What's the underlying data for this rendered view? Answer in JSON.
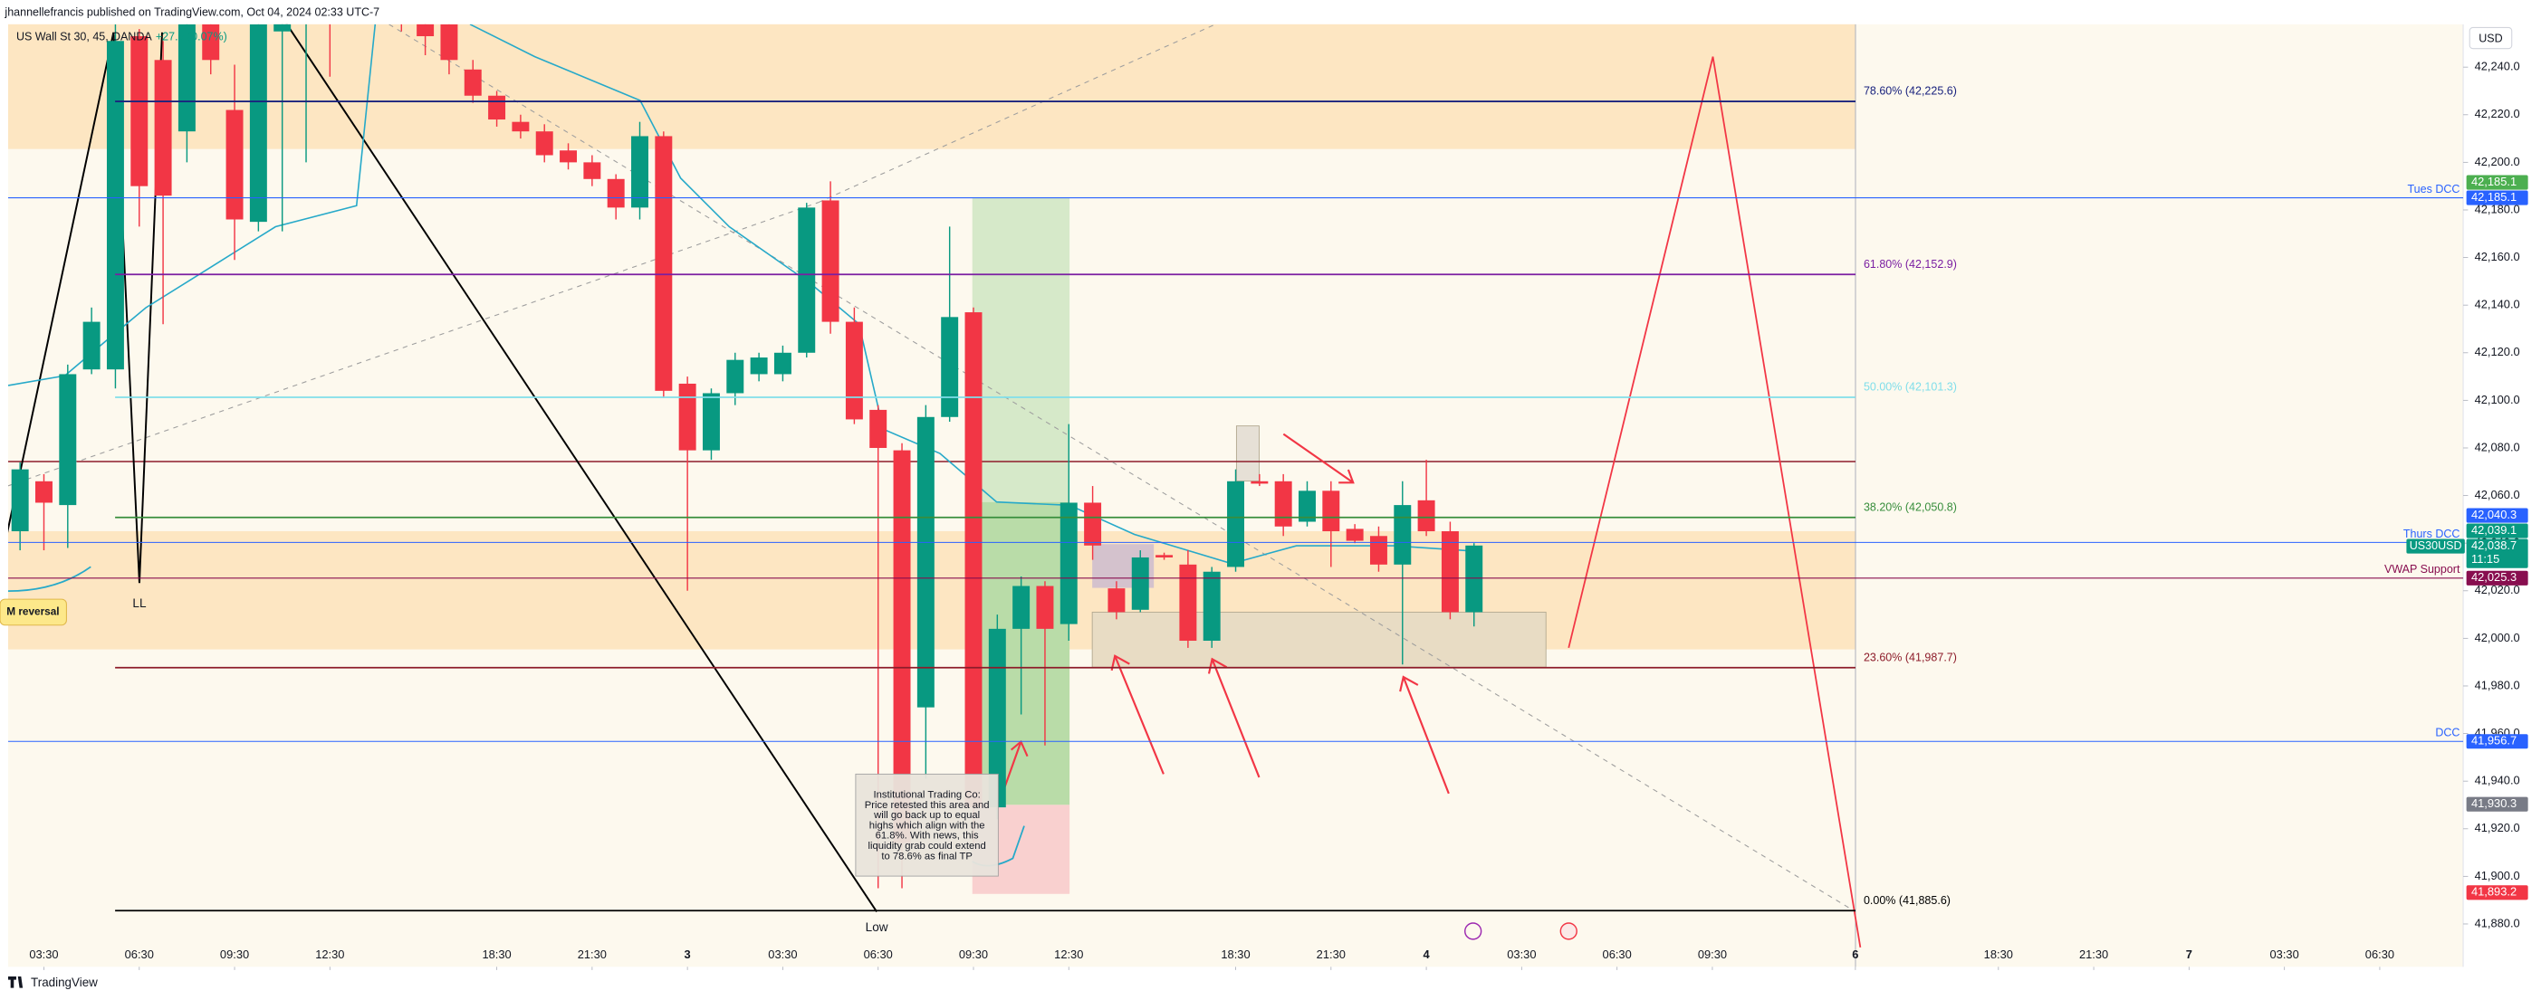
{
  "header": {
    "publisher": "jhannellefrancis published on TradingView.com, Oct 04, 2024 02:33 UTC-7",
    "symbol": "US Wall St 30, 45, OANDA",
    "change": "+27.5 (0.07%)",
    "currency": "USD"
  },
  "footer": "TradingView",
  "annotations": {
    "m_reversal": "M reversal",
    "ll": "LL",
    "low": "Low",
    "note": [
      "Institutional Trading Co:",
      "Price retested this area and",
      "will go back up to equal",
      "highs which align with the",
      "61.8%. With news, this",
      "liquidity grab could extend",
      "to 78.6% as final TP"
    ]
  },
  "chart_data": {
    "type": "candlestick",
    "up_color": "#089981",
    "down_color": "#f23645",
    "x": [
      -1,
      0,
      1,
      2,
      3,
      4,
      5,
      6,
      7,
      8,
      9,
      10,
      11,
      12,
      13,
      14,
      15,
      16,
      17,
      18,
      19,
      20,
      21,
      22,
      23,
      24,
      25,
      26,
      27,
      28,
      29,
      30,
      31,
      32,
      33,
      34,
      35,
      36,
      37,
      38,
      39,
      40,
      41,
      42,
      43,
      44,
      45,
      46,
      47,
      48,
      49,
      50,
      51,
      52,
      53,
      54,
      55,
      56,
      57,
      58,
      59,
      60
    ],
    "open": [
      42045,
      42066,
      42056,
      42113,
      42113,
      42253,
      42243,
      42213,
      42258,
      42222,
      42175,
      42255,
      42270,
      42290,
      42275,
      42290,
      42280,
      42268,
      42258,
      42239,
      42228,
      42217,
      42213,
      42205,
      42200,
      42193,
      42181,
      42211,
      42107,
      42079,
      42103,
      42111,
      42111,
      42120,
      42184,
      42133,
      42096,
      42079,
      41971,
      42093,
      42137,
      41929,
      42004,
      42022,
      42006,
      42057,
      42021,
      42012,
      42035,
      42031,
      41999,
      42030,
      42066,
      42066,
      42049,
      42062,
      42046,
      42043,
      42031,
      42058,
      42045,
      42011
    ],
    "high": [
      42074,
      42069,
      42115,
      42139,
      42258,
      42256,
      42251,
      42262,
      42262,
      42241,
      42262,
      42285,
      42295,
      42300,
      42300,
      42295,
      42285,
      42272,
      42262,
      42243,
      42230,
      42220,
      42216,
      42208,
      42203,
      42195,
      42217,
      42213,
      42110,
      42105,
      42120,
      42120,
      42123,
      42183,
      42192,
      42139,
      42098,
      42082,
      42098,
      42173,
      42139,
      42010,
      42026,
      42024,
      42090,
      42064,
      42024,
      42037,
      42036,
      42037,
      42030,
      42071,
      42069,
      42069,
      42066,
      42066,
      42048,
      42047,
      42066,
      42075,
      42049,
      42040
    ],
    "low": [
      42037,
      42037,
      42038,
      42111,
      42105,
      42173,
      42132,
      42200,
      42237,
      42159,
      42171,
      42171,
      42200,
      42236,
      42260,
      42265,
      42255,
      42245,
      42237,
      42225,
      42215,
      42210,
      42200,
      42197,
      42190,
      42176,
      42176,
      42101,
      42020,
      42075,
      42098,
      42108,
      42108,
      42118,
      42128,
      42090,
      41895,
      41895,
      41941,
      42091,
      41914,
      41924,
      41968,
      41955,
      41999,
      42033,
      42008,
      42011,
      42033,
      41996,
      41996,
      42028,
      42064,
      42043,
      42047,
      42030,
      42040,
      42028,
      41989,
      42043,
      42008,
      42005
    ],
    "close": [
      42071,
      42057,
      42111,
      42133,
      42251,
      42190,
      42186,
      42258,
      42243,
      42176,
      42258,
      42275,
      42290,
      42275,
      42290,
      42280,
      42268,
      42253,
      42243,
      42228,
      42218,
      42213,
      42203,
      42200,
      42193,
      42181,
      42211,
      42104,
      42079,
      42103,
      42117,
      42118,
      42120,
      42181,
      42133,
      42092,
      42080,
      41914,
      42093,
      42135,
      41929,
      42004,
      42022,
      42004,
      42057,
      42039,
      42011,
      42034,
      42034,
      41999,
      42028,
      42066,
      42065,
      42047,
      42062,
      42045,
      42041,
      42031,
      42056,
      42045,
      42011,
      42039
    ],
    "xlim": [
      -1.5,
      101.5
    ],
    "xticks": [
      {
        "value": 0,
        "label": "03:30"
      },
      {
        "value": 4,
        "label": "06:30"
      },
      {
        "value": 8,
        "label": "09:30"
      },
      {
        "value": 12,
        "label": "12:30"
      },
      {
        "value": 19,
        "label": "18:30"
      },
      {
        "value": 23,
        "label": "21:30"
      },
      {
        "value": 27,
        "label": "3"
      },
      {
        "value": 31,
        "label": "03:30"
      },
      {
        "value": 35,
        "label": "06:30"
      },
      {
        "value": 39,
        "label": "09:30"
      },
      {
        "value": 43,
        "label": "12:30"
      },
      {
        "value": 50,
        "label": "18:30"
      },
      {
        "value": 54,
        "label": "21:30"
      },
      {
        "value": 58,
        "label": "4"
      },
      {
        "value": 62,
        "label": "03:30"
      },
      {
        "value": 66,
        "label": "06:30"
      },
      {
        "value": 70,
        "label": "09:30"
      },
      {
        "value": 76,
        "label": "6"
      },
      {
        "value": 82,
        "label": "18:30"
      },
      {
        "value": 86,
        "label": "21:30"
      },
      {
        "value": 90,
        "label": "7"
      },
      {
        "value": 94,
        "label": "03:30"
      },
      {
        "value": 98,
        "label": "06:30"
      }
    ],
    "ylim": [
      41862,
      42258
    ],
    "yticks": [
      {
        "value": 42240,
        "label": "42,240.0"
      },
      {
        "value": 42220,
        "label": "42,220.0"
      },
      {
        "value": 42200,
        "label": "42,200.0"
      },
      {
        "value": 42180,
        "label": "42,180.0"
      },
      {
        "value": 42160,
        "label": "42,160.0"
      },
      {
        "value": 42140,
        "label": "42,140.0"
      },
      {
        "value": 42120,
        "label": "42,120.0"
      },
      {
        "value": 42100,
        "label": "42,100.0"
      },
      {
        "value": 42080,
        "label": "42,080.0"
      },
      {
        "value": 42060,
        "label": "42,060.0"
      },
      {
        "value": 42040,
        "label": "42,040.0"
      },
      {
        "value": 42020,
        "label": "42,020.0"
      },
      {
        "value": 42000,
        "label": "42,000.0"
      },
      {
        "value": 41980,
        "label": "41,980.0"
      },
      {
        "value": 41960,
        "label": "41,960.0"
      },
      {
        "value": 41940,
        "label": "41,940.0"
      },
      {
        "value": 41920,
        "label": "41,920.0"
      },
      {
        "value": 41900,
        "label": "41,900.0"
      },
      {
        "value": 41880,
        "label": "41,880.0"
      }
    ],
    "levels": [
      {
        "label": "78.60% (42,225.6)",
        "value": 42225.6,
        "color": "#1a237e"
      },
      {
        "label": "61.80% (42,152.9)",
        "value": 42152.9,
        "color": "#7b1fa2"
      },
      {
        "label": "50.00% (42,101.3)",
        "value": 42101.3,
        "color": "#80deea"
      },
      {
        "label": "38.20% (42,050.8)",
        "value": 42050.8,
        "color": "#388e3c"
      },
      {
        "label": "23.60% (41,987.7)",
        "value": 41987.7,
        "color": "#8d1c2a"
      },
      {
        "label": "0.00% (41,885.6)",
        "value": 41885.6,
        "color": "#000000"
      }
    ],
    "lines": [
      {
        "label": "Tues DCC",
        "value": 42185.1,
        "color": "#2962ff"
      },
      {
        "label": "Thurs DCC",
        "value": 42040.3,
        "color": "#2962ff"
      },
      {
        "label": "VWAP Support",
        "value": 42025.3,
        "color": "#880e4f"
      },
      {
        "label": "DCC",
        "value": 41956.7,
        "color": "#2962ff"
      }
    ],
    "price_tags": [
      {
        "label": "42,185.1",
        "value": 42185.1,
        "color": "#4caf50"
      },
      {
        "label": "42,185.1",
        "value": 42185.1,
        "color": "#2962ff"
      },
      {
        "label": "42,040.3",
        "value": 42040.3,
        "color": "#2962ff"
      },
      {
        "label": "42,039.1",
        "value": 42039.1,
        "color": "#089981"
      },
      {
        "label": "42,038.7",
        "value": 42038.7,
        "color": "#089981",
        "symbol": "US30USD",
        "countdown": "11:15"
      },
      {
        "label": "42,025.3",
        "value": 42025.3,
        "color": "#880e4f"
      },
      {
        "label": "41,956.7",
        "value": 41956.7,
        "color": "#2962ff"
      },
      {
        "label": "41,930.3",
        "value": 41930.3,
        "color": "#787b86"
      },
      {
        "label": "41,893.2",
        "value": 41893.2,
        "color": "#f23645"
      }
    ]
  }
}
